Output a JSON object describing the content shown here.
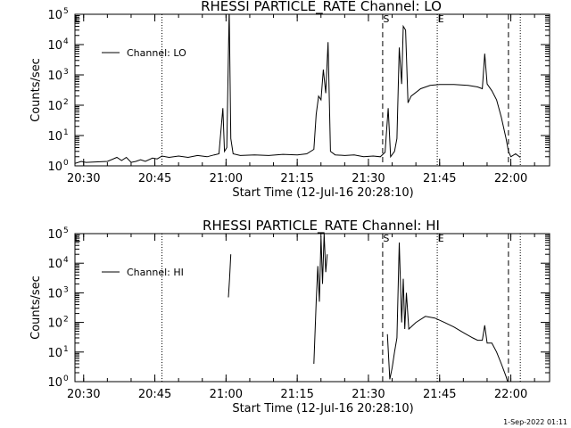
{
  "footer_timestamp": "1-Sep-2022 01:11",
  "chart_data": [
    {
      "type": "line",
      "title": "RHESSI PARTICLE_RATE Channel: LO",
      "xlabel": "Start Time (12-Jul-16 20:28:10)",
      "ylabel": "Counts/sec",
      "legend": {
        "label": "Channel: LO",
        "position": "top-left"
      },
      "yscale": "log",
      "ylim": [
        1,
        100000
      ],
      "y_ticks": [
        {
          "value": 1,
          "base": "10",
          "exp": "0"
        },
        {
          "value": 10,
          "base": "10",
          "exp": "1"
        },
        {
          "value": 100,
          "base": "10",
          "exp": "2"
        },
        {
          "value": 1000,
          "base": "10",
          "exp": "3"
        },
        {
          "value": 10000,
          "base": "10",
          "exp": "4"
        },
        {
          "value": 100000,
          "base": "10",
          "exp": "5"
        }
      ],
      "x_ticks": [
        "20:30",
        "20:45",
        "21:00",
        "21:15",
        "21:30",
        "21:45",
        "22:00"
      ],
      "xlim": [
        "20:28:10",
        "22:08:10"
      ],
      "markers": [
        {
          "label": "S",
          "time": "21:33:00",
          "style": "dashed"
        },
        {
          "label": "E",
          "time": "21:44:30",
          "style": "dotted"
        },
        {
          "label": "",
          "time": "20:46:30",
          "style": "dotted"
        },
        {
          "label": "",
          "time": "21:59:30",
          "style": "dashed"
        },
        {
          "label": "",
          "time": "22:02:00",
          "style": "dotted"
        }
      ],
      "series": [
        {
          "name": "Channel: LO",
          "points": [
            [
              "20:28:10",
              1.2
            ],
            [
              "20:29:30",
              1.4
            ],
            [
              "20:30:30",
              1.3
            ],
            [
              "20:35:00",
              1.4
            ],
            [
              "20:37:00",
              1.9
            ],
            [
              "20:38:00",
              1.5
            ],
            [
              "20:39:00",
              1.9
            ],
            [
              "20:40:00",
              1.3
            ],
            [
              "20:41:00",
              1.4
            ],
            [
              "20:42:00",
              1.6
            ],
            [
              "20:43:00",
              1.4
            ],
            [
              "20:44:30",
              1.8
            ],
            [
              "20:45:30",
              1.7
            ],
            [
              "20:46:30",
              2.1
            ],
            [
              "20:48:00",
              1.9
            ],
            [
              "20:50:00",
              2.1
            ],
            [
              "20:52:00",
              1.9
            ],
            [
              "20:54:00",
              2.2
            ],
            [
              "20:56:00",
              2.0
            ],
            [
              "20:57:30",
              2.3
            ],
            [
              "20:58:30",
              2.5
            ],
            [
              "20:59:20",
              80
            ],
            [
              "20:59:40",
              3
            ],
            [
              "21:00:10",
              4
            ],
            [
              "21:00:40",
              150000
            ],
            [
              "21:01:00",
              8
            ],
            [
              "21:01:30",
              2.5
            ],
            [
              "21:03:00",
              2.2
            ],
            [
              "21:06:00",
              2.3
            ],
            [
              "21:09:00",
              2.2
            ],
            [
              "21:12:00",
              2.4
            ],
            [
              "21:15:00",
              2.3
            ],
            [
              "21:17:00",
              2.5
            ],
            [
              "21:18:30",
              3.5
            ],
            [
              "21:19:00",
              50
            ],
            [
              "21:19:30",
              200
            ],
            [
              "21:20:00",
              150
            ],
            [
              "21:20:30",
              1500
            ],
            [
              "21:21:00",
              250
            ],
            [
              "21:21:30",
              12000
            ],
            [
              "21:22:00",
              3
            ],
            [
              "21:23:00",
              2.3
            ],
            [
              "21:25:00",
              2.2
            ],
            [
              "21:27:00",
              2.3
            ],
            [
              "21:29:00",
              2.0
            ],
            [
              "21:31:00",
              2.1
            ],
            [
              "21:32:30",
              2.0
            ],
            [
              "21:33:30",
              2.8
            ],
            [
              "21:34:10",
              80
            ],
            [
              "21:34:40",
              2
            ],
            [
              "21:35:30",
              3
            ],
            [
              "21:36:00",
              8
            ],
            [
              "21:36:30",
              8000
            ],
            [
              "21:37:00",
              500
            ],
            [
              "21:37:20",
              40000
            ],
            [
              "21:37:50",
              30000
            ],
            [
              "21:38:20",
              120
            ],
            [
              "21:39:00",
              200
            ],
            [
              "21:41:00",
              350
            ],
            [
              "21:43:00",
              450
            ],
            [
              "21:45:00",
              480
            ],
            [
              "21:48:00",
              480
            ],
            [
              "21:51:00",
              450
            ],
            [
              "21:53:00",
              400
            ],
            [
              "21:54:00",
              350
            ],
            [
              "21:54:30",
              5000
            ],
            [
              "21:55:00",
              500
            ],
            [
              "21:56:00",
              300
            ],
            [
              "21:57:00",
              150
            ],
            [
              "21:58:00",
              40
            ],
            [
              "21:59:00",
              8
            ],
            [
              "21:59:30",
              3
            ],
            [
              "22:00:00",
              2
            ],
            [
              "22:01:00",
              2.5
            ],
            [
              "22:02:00",
              1.9
            ]
          ]
        }
      ]
    },
    {
      "type": "line",
      "title": "RHESSI PARTICLE_RATE Channel: HI",
      "xlabel": "Start Time (12-Jul-16 20:28:10)",
      "ylabel": "Counts/sec",
      "legend": {
        "label": "Channel: HI",
        "position": "top-left"
      },
      "yscale": "log",
      "ylim": [
        1,
        100000
      ],
      "y_ticks": [
        {
          "value": 1,
          "base": "10",
          "exp": "0"
        },
        {
          "value": 10,
          "base": "10",
          "exp": "1"
        },
        {
          "value": 100,
          "base": "10",
          "exp": "2"
        },
        {
          "value": 1000,
          "base": "10",
          "exp": "3"
        },
        {
          "value": 10000,
          "base": "10",
          "exp": "4"
        },
        {
          "value": 100000,
          "base": "10",
          "exp": "5"
        }
      ],
      "x_ticks": [
        "20:30",
        "20:45",
        "21:00",
        "21:15",
        "21:30",
        "21:45",
        "22:00"
      ],
      "xlim": [
        "20:28:10",
        "22:08:10"
      ],
      "markers": [
        {
          "label": "S",
          "time": "21:33:00",
          "style": "dashed"
        },
        {
          "label": "E",
          "time": "21:44:30",
          "style": "dotted"
        },
        {
          "label": "",
          "time": "20:46:30",
          "style": "dotted"
        },
        {
          "label": "",
          "time": "21:59:30",
          "style": "dashed"
        },
        {
          "label": "",
          "time": "22:02:00",
          "style": "dotted"
        }
      ],
      "series": [
        {
          "name": "Channel: HI",
          "segments": [
            [
              [
                "21:00:30",
                700
              ],
              [
                "21:00:45",
                3000
              ],
              [
                "21:01:00",
                20000
              ]
            ],
            [
              [
                "21:18:30",
                4
              ],
              [
                "21:19:00",
                500
              ],
              [
                "21:19:20",
                8000
              ],
              [
                "21:19:40",
                500
              ],
              [
                "21:20:00",
                80000
              ],
              [
                "21:20:20",
                2000
              ],
              [
                "21:20:40",
                100000
              ],
              [
                "21:21:00",
                5000
              ],
              [
                "21:21:20",
                20000
              ]
            ],
            [
              [
                "21:34:00",
                40
              ],
              [
                "21:34:30",
                1.2
              ],
              [
                "21:35:00",
                3
              ],
              [
                "21:35:30",
                10
              ],
              [
                "21:36:00",
                30
              ],
              [
                "21:36:30",
                50000
              ],
              [
                "21:37:00",
                100
              ],
              [
                "21:37:20",
                3000
              ],
              [
                "21:37:40",
                60
              ],
              [
                "21:38:00",
                1000
              ],
              [
                "21:38:30",
                60
              ],
              [
                "21:40:00",
                100
              ],
              [
                "21:42:00",
                160
              ],
              [
                "21:44:00",
                140
              ],
              [
                "21:46:00",
                100
              ],
              [
                "21:48:00",
                70
              ],
              [
                "21:50:00",
                45
              ],
              [
                "21:52:00",
                30
              ],
              [
                "21:53:00",
                25
              ],
              [
                "21:54:00",
                25
              ],
              [
                "21:54:30",
                80
              ],
              [
                "21:55:00",
                20
              ],
              [
                "21:56:00",
                20
              ],
              [
                "21:57:00",
                10
              ],
              [
                "21:58:00",
                4
              ],
              [
                "21:59:00",
                1.5
              ],
              [
                "21:59:30",
                0.8
              ]
            ]
          ]
        }
      ]
    }
  ]
}
